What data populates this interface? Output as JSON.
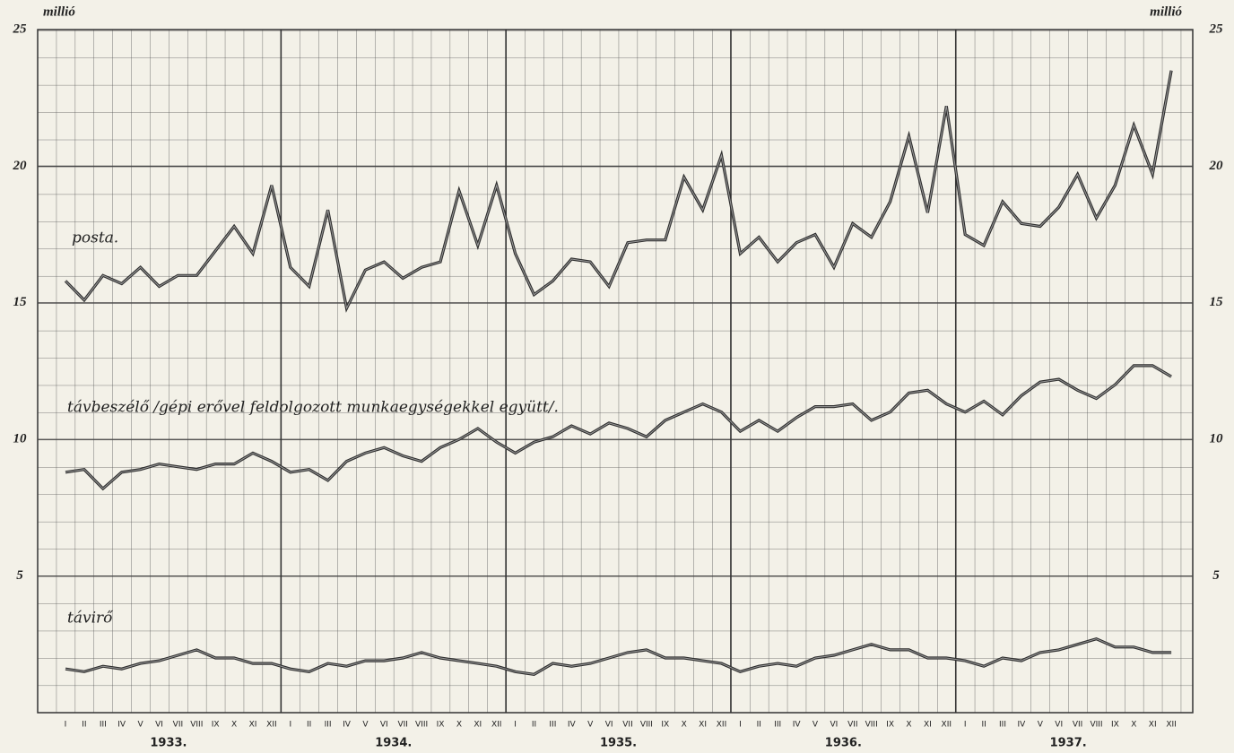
{
  "chart_data": {
    "type": "line",
    "y_label": "millió",
    "categories": [
      "I",
      "II",
      "III",
      "IV",
      "V",
      "VI",
      "VII",
      "VIII",
      "IX",
      "X",
      "XI",
      "XII",
      "I",
      "II",
      "III",
      "IV",
      "V",
      "VI",
      "VII",
      "VIII",
      "IX",
      "X",
      "XI",
      "XII",
      "I",
      "II",
      "III",
      "IV",
      "V",
      "VI",
      "VII",
      "VIII",
      "IX",
      "X",
      "XI",
      "XII",
      "I",
      "II",
      "III",
      "IV",
      "V",
      "VI",
      "VII",
      "VIII",
      "IX",
      "X",
      "XI",
      "XII",
      "I",
      "II",
      "III",
      "IV",
      "V",
      "VI",
      "VII",
      "VIII",
      "IX",
      "X",
      "XI",
      "XII"
    ],
    "years": [
      "1933.",
      "1934.",
      "1935.",
      "1936.",
      "1937."
    ],
    "ylim": [
      0,
      25
    ],
    "yticks": [
      5,
      10,
      15,
      20,
      25
    ],
    "grid": true,
    "series": [
      {
        "name": "posta.",
        "color": "#2e2e2e",
        "values": [
          15.8,
          15.1,
          16.0,
          15.7,
          16.3,
          15.6,
          16.0,
          16.0,
          16.9,
          17.8,
          16.8,
          19.3,
          16.3,
          15.6,
          18.4,
          14.8,
          16.2,
          16.5,
          15.9,
          16.3,
          16.5,
          19.1,
          17.1,
          19.3,
          16.8,
          15.3,
          15.8,
          16.6,
          16.5,
          15.6,
          17.2,
          17.3,
          17.3,
          19.6,
          18.4,
          20.4,
          16.8,
          17.4,
          16.5,
          17.2,
          17.5,
          16.3,
          17.9,
          17.4,
          18.7,
          21.1,
          18.3,
          22.2,
          17.5,
          17.1,
          18.7,
          17.9,
          17.8,
          18.5,
          19.7,
          18.1,
          19.3,
          21.5,
          19.7,
          23.5
        ]
      },
      {
        "name": "távbeszélő /gépi erővel feldolgozott munkaegységekkel együtt/.",
        "color": "#2e2e2e",
        "values": [
          8.8,
          8.9,
          8.2,
          8.8,
          8.9,
          9.1,
          9.0,
          8.9,
          9.1,
          9.1,
          9.5,
          9.2,
          8.8,
          8.9,
          8.5,
          9.2,
          9.5,
          9.7,
          9.4,
          9.2,
          9.7,
          10.0,
          10.4,
          9.9,
          9.5,
          9.9,
          10.1,
          10.5,
          10.2,
          10.6,
          10.4,
          10.1,
          10.7,
          11.0,
          11.3,
          11.0,
          10.3,
          10.7,
          10.3,
          10.8,
          11.2,
          11.2,
          11.3,
          10.7,
          11.0,
          11.7,
          11.8,
          11.3,
          11.0,
          11.4,
          10.9,
          11.6,
          12.1,
          12.2,
          11.8,
          11.5,
          12.0,
          12.7,
          12.7,
          12.3
        ]
      },
      {
        "name": "távirő",
        "color": "#2e2e2e",
        "values": [
          1.6,
          1.5,
          1.7,
          1.6,
          1.8,
          1.9,
          2.1,
          2.3,
          2.0,
          2.0,
          1.8,
          1.8,
          1.6,
          1.5,
          1.8,
          1.7,
          1.9,
          1.9,
          2.0,
          2.2,
          2.0,
          1.9,
          1.8,
          1.7,
          1.5,
          1.4,
          1.8,
          1.7,
          1.8,
          2.0,
          2.2,
          2.3,
          2.0,
          2.0,
          1.9,
          1.8,
          1.5,
          1.7,
          1.8,
          1.7,
          2.0,
          2.1,
          2.3,
          2.5,
          2.3,
          2.3,
          2.0,
          2.0,
          1.9,
          1.7,
          2.0,
          1.9,
          2.2,
          2.3,
          2.5,
          2.7,
          2.4,
          2.4,
          2.2,
          2.2
        ]
      }
    ]
  }
}
